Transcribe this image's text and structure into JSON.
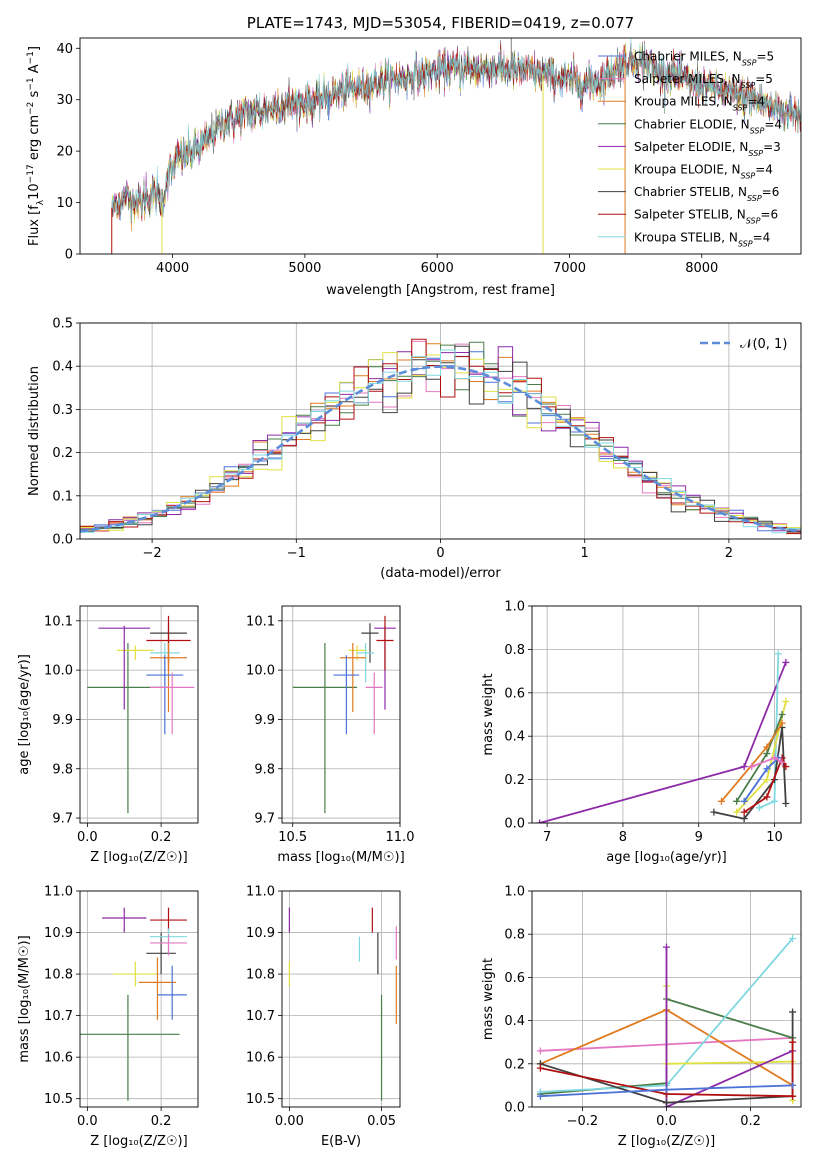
{
  "chart_data": [
    {
      "id": "spectrum",
      "type": "line",
      "title": "PLATE=1743, MJD=53054, FIBERID=0419, z=0.077",
      "xlabel": "wavelength [Angstrom, rest frame]",
      "ylabel": "Flux [f_λ10^-17 erg cm^-2 s^-1 A^-1]",
      "xlim": [
        3300,
        8750
      ],
      "ylim": [
        0,
        42
      ],
      "xticks": [
        4000,
        5000,
        6000,
        7000,
        8000
      ],
      "yticks": [
        0,
        10,
        20,
        30,
        40
      ],
      "grid": false,
      "legend_position": "top-right",
      "legend": [
        {
          "label": "Chabrier MILES, N",
          "sub": "SSP",
          "n": "=5",
          "color": "#4c72d8"
        },
        {
          "label": "Salpeter MILES, N",
          "sub": "SSP",
          "n": "=5",
          "color": "#e377c2"
        },
        {
          "label": "Kroupa MILES, N",
          "sub": "SSP",
          "n": "=4",
          "color": "#e07b20"
        },
        {
          "label": "Chabrier ELODIE, N",
          "sub": "SSP",
          "n": "=4",
          "color": "#4a7d4a"
        },
        {
          "label": "Salpeter ELODIE, N",
          "sub": "SSP",
          "n": "=3",
          "color": "#8e2aa8"
        },
        {
          "label": "Kroupa ELODIE, N",
          "sub": "SSP",
          "n": "=4",
          "color": "#e0e040"
        },
        {
          "label": "Chabrier STELIB, N",
          "sub": "SSP",
          "n": "=6",
          "color": "#404040"
        },
        {
          "label": "Salpeter STELIB, N",
          "sub": "SSP",
          "n": "=6",
          "color": "#b21010"
        },
        {
          "label": "Kroupa STELIB, N",
          "sub": "SSP",
          "n": "=4",
          "color": "#80d8e0"
        }
      ],
      "continuum": [
        [
          3540,
          9
        ],
        [
          3650,
          11
        ],
        [
          3750,
          10
        ],
        [
          3850,
          12
        ],
        [
          3920,
          10
        ],
        [
          3960,
          15
        ],
        [
          4050,
          19
        ],
        [
          4150,
          20
        ],
        [
          4250,
          22
        ],
        [
          4350,
          25
        ],
        [
          4450,
          26
        ],
        [
          4550,
          27
        ],
        [
          4700,
          28
        ],
        [
          4850,
          29
        ],
        [
          5000,
          29.5
        ],
        [
          5100,
          30
        ],
        [
          5200,
          31
        ],
        [
          5350,
          32
        ],
        [
          5500,
          33
        ],
        [
          5700,
          34
        ],
        [
          5900,
          35
        ],
        [
          6100,
          36
        ],
        [
          6300,
          36
        ],
        [
          6500,
          36
        ],
        [
          6700,
          35.5
        ],
        [
          6900,
          34.5
        ],
        [
          7100,
          33
        ],
        [
          7250,
          34
        ],
        [
          7400,
          37
        ],
        [
          7500,
          38
        ],
        [
          7600,
          37
        ],
        [
          7700,
          35
        ],
        [
          7800,
          35
        ],
        [
          7950,
          33
        ],
        [
          8100,
          32
        ],
        [
          8250,
          31
        ],
        [
          8400,
          30
        ],
        [
          8600,
          28
        ],
        [
          8750,
          27
        ]
      ],
      "sharp_features": [
        {
          "x": 3540,
          "y": 0,
          "color": "#b21010"
        },
        {
          "x": 3920,
          "y": 0,
          "color": "#e0e040"
        },
        {
          "x": 5180,
          "y": 26,
          "color": "#4c72d8"
        },
        {
          "x": 6560,
          "y": 42,
          "color": "#808080"
        },
        {
          "x": 6800,
          "y": 0,
          "color": "#e0e040"
        },
        {
          "x": 7420,
          "y": 0,
          "color": "#e07b20"
        }
      ]
    },
    {
      "id": "residual-histogram",
      "type": "histogram",
      "xlabel": "(data-model)/error",
      "ylabel": "Normed distribution",
      "xlim": [
        -2.5,
        2.5
      ],
      "ylim": [
        0,
        0.5
      ],
      "xticks": [
        -2,
        -1,
        0,
        1,
        2
      ],
      "yticks": [
        0.0,
        0.1,
        0.2,
        0.3,
        0.4,
        0.5
      ],
      "grid": true,
      "bin_width": 0.1,
      "legend_position": "top-right",
      "legend": [
        {
          "label": "𝒩(0, 1)",
          "color": "#5b8dd9",
          "style": "dashed"
        }
      ],
      "series_colors": [
        "#4c72d8",
        "#e377c2",
        "#e07b20",
        "#4a7d4a",
        "#8e2aa8",
        "#e0e040",
        "#404040",
        "#b21010",
        "#80d8e0"
      ]
    },
    {
      "id": "age-vs-z",
      "type": "errorbar",
      "xlabel": "Z [log₁₀(Z/Z☉)]",
      "ylabel": "age  [log₁₀(age/yr)]",
      "xlim": [
        -0.02,
        0.3
      ],
      "ylim": [
        9.69,
        10.13
      ],
      "xticks": [
        0.0,
        0.2
      ],
      "yticks": [
        9.7,
        9.8,
        9.9,
        10.0,
        10.1
      ],
      "grid": true,
      "points": [
        {
          "x": 0.11,
          "y": 9.965,
          "xerr": 0.11,
          "yup": 0.09,
          "ydn": 0.255,
          "color": "#4a7d4a"
        },
        {
          "x": 0.13,
          "y": 10.04,
          "xerr": 0.05,
          "yup": 0.01,
          "ydn": 0.02,
          "color": "#e0e040"
        },
        {
          "x": 0.1,
          "y": 10.085,
          "xerr": 0.07,
          "yup": 0.005,
          "ydn": 0.165,
          "color": "#8e2aa8"
        },
        {
          "x": 0.22,
          "y": 10.075,
          "xerr": 0.05,
          "yup": 0.02,
          "ydn": 0.06,
          "color": "#404040"
        },
        {
          "x": 0.22,
          "y": 10.06,
          "xerr": 0.06,
          "yup": 0.05,
          "ydn": 0.06,
          "color": "#b21010"
        },
        {
          "x": 0.21,
          "y": 10.035,
          "xerr": 0.04,
          "yup": 0.02,
          "ydn": 0.06,
          "color": "#80d8e0"
        },
        {
          "x": 0.22,
          "y": 10.025,
          "xerr": 0.05,
          "yup": 0.03,
          "ydn": 0.11,
          "color": "#e07b20"
        },
        {
          "x": 0.21,
          "y": 9.99,
          "xerr": 0.05,
          "yup": 0.04,
          "ydn": 0.12,
          "color": "#4c72d8"
        },
        {
          "x": 0.23,
          "y": 9.965,
          "xerr": 0.06,
          "yup": 0.03,
          "ydn": 0.095,
          "color": "#e377c2"
        }
      ]
    },
    {
      "id": "age-vs-mass",
      "type": "errorbar",
      "xlabel": "mass [log₁₀(M/M☉)]",
      "ylabel": "",
      "xlim": [
        10.45,
        11.0
      ],
      "ylim": [
        9.69,
        10.13
      ],
      "xticks": [
        10.5,
        11.0
      ],
      "yticks": [
        9.7,
        9.8,
        9.9,
        10.0,
        10.1
      ],
      "grid": true,
      "points": [
        {
          "x": 10.65,
          "y": 9.965,
          "xerr": 0.15,
          "yup": 0.09,
          "ydn": 0.255,
          "color": "#4a7d4a"
        },
        {
          "x": 10.8,
          "y": 10.04,
          "xerr": 0.04,
          "yup": 0.01,
          "ydn": 0.02,
          "color": "#e0e040"
        },
        {
          "x": 10.93,
          "y": 10.085,
          "xerr": 0.05,
          "yup": 0.005,
          "ydn": 0.165,
          "color": "#8e2aa8"
        },
        {
          "x": 10.86,
          "y": 10.075,
          "xerr": 0.04,
          "yup": 0.02,
          "ydn": 0.06,
          "color": "#404040"
        },
        {
          "x": 10.93,
          "y": 10.06,
          "xerr": 0.04,
          "yup": 0.05,
          "ydn": 0.06,
          "color": "#b21010"
        },
        {
          "x": 10.84,
          "y": 10.035,
          "xerr": 0.04,
          "yup": 0.02,
          "ydn": 0.06,
          "color": "#80d8e0"
        },
        {
          "x": 10.78,
          "y": 10.025,
          "xerr": 0.06,
          "yup": 0.03,
          "ydn": 0.11,
          "color": "#e07b20"
        },
        {
          "x": 10.75,
          "y": 9.99,
          "xerr": 0.06,
          "yup": 0.04,
          "ydn": 0.12,
          "color": "#4c72d8"
        },
        {
          "x": 10.88,
          "y": 9.965,
          "xerr": 0.04,
          "yup": 0.03,
          "ydn": 0.095,
          "color": "#e377c2"
        }
      ]
    },
    {
      "id": "weight-vs-age",
      "type": "line",
      "xlabel": "age  [log₁₀(age/yr)]",
      "ylabel": "mass weight",
      "xlim": [
        6.8,
        10.35
      ],
      "ylim": [
        0,
        1
      ],
      "xticks": [
        8,
        10
      ],
      "xtick_labels_extra": [
        7,
        9
      ],
      "yticks": [
        0.0,
        0.2,
        0.4,
        0.6,
        0.8,
        1.0
      ],
      "grid": true,
      "series": [
        {
          "color": "#8e2aa8",
          "points": [
            [
              6.9,
              0.0
            ],
            [
              9.6,
              0.26
            ],
            [
              10.15,
              0.74
            ]
          ]
        },
        {
          "color": "#80d8e0",
          "points": [
            [
              9.8,
              0.07
            ],
            [
              10.0,
              0.1
            ],
            [
              10.05,
              0.78
            ]
          ]
        },
        {
          "color": "#e0e040",
          "points": [
            [
              9.5,
              0.05
            ],
            [
              9.9,
              0.2
            ],
            [
              10.15,
              0.56
            ]
          ]
        },
        {
          "color": "#4a7d4a",
          "points": [
            [
              9.5,
              0.1
            ],
            [
              9.9,
              0.32
            ],
            [
              10.1,
              0.5
            ]
          ]
        },
        {
          "color": "#404040",
          "points": [
            [
              9.2,
              0.05
            ],
            [
              9.6,
              0.02
            ],
            [
              10.0,
              0.2
            ],
            [
              10.1,
              0.44
            ],
            [
              10.15,
              0.09
            ]
          ]
        },
        {
          "color": "#e07b20",
          "points": [
            [
              9.3,
              0.1
            ],
            [
              9.9,
              0.35
            ],
            [
              10.1,
              0.46
            ]
          ]
        },
        {
          "color": "#b21010",
          "points": [
            [
              9.6,
              0.05
            ],
            [
              9.9,
              0.12
            ],
            [
              10.1,
              0.3
            ],
            [
              10.15,
              0.26
            ]
          ]
        },
        {
          "color": "#4c72d8",
          "points": [
            [
              9.6,
              0.1
            ],
            [
              9.9,
              0.25
            ],
            [
              10.05,
              0.3
            ]
          ]
        },
        {
          "color": "#e377c2",
          "points": [
            [
              9.7,
              0.26
            ],
            [
              10.0,
              0.3
            ],
            [
              10.1,
              0.28
            ]
          ]
        }
      ]
    },
    {
      "id": "mass-vs-z",
      "type": "errorbar",
      "xlabel": "Z [log₁₀(Z/Z☉)]",
      "ylabel": "mass [log₁₀(M/M☉)]",
      "xlim": [
        -0.02,
        0.3
      ],
      "ylim": [
        10.48,
        11.0
      ],
      "xticks": [
        0.0,
        0.2
      ],
      "yticks": [
        10.5,
        10.6,
        10.7,
        10.8,
        10.9,
        11.0
      ],
      "grid": true,
      "points": [
        {
          "x": 0.11,
          "y": 10.655,
          "xerr": 0.14,
          "yup": 0.095,
          "ydn": 0.16,
          "color": "#4a7d4a"
        },
        {
          "x": 0.13,
          "y": 10.8,
          "xerr": 0.06,
          "yup": 0.03,
          "ydn": 0.03,
          "color": "#e0e040"
        },
        {
          "x": 0.1,
          "y": 10.935,
          "xerr": 0.06,
          "yup": 0.025,
          "ydn": 0.035,
          "color": "#8e2aa8"
        },
        {
          "x": 0.2,
          "y": 10.85,
          "xerr": 0.04,
          "yup": 0.05,
          "ydn": 0.05,
          "color": "#404040"
        },
        {
          "x": 0.22,
          "y": 10.93,
          "xerr": 0.05,
          "yup": 0.03,
          "ydn": 0.03,
          "color": "#b21010"
        },
        {
          "x": 0.22,
          "y": 10.89,
          "xerr": 0.05,
          "yup": 0.02,
          "ydn": 0.04,
          "color": "#80d8e0"
        },
        {
          "x": 0.22,
          "y": 10.875,
          "xerr": 0.05,
          "yup": 0.02,
          "ydn": 0.03,
          "color": "#e377c2"
        },
        {
          "x": 0.19,
          "y": 10.78,
          "xerr": 0.05,
          "yup": 0.06,
          "ydn": 0.09,
          "color": "#e07b20"
        },
        {
          "x": 0.23,
          "y": 10.75,
          "xerr": 0.04,
          "yup": 0.07,
          "ydn": 0.06,
          "color": "#4c72d8"
        }
      ]
    },
    {
      "id": "mass-vs-ebv",
      "type": "errorbar",
      "xlabel": "E(B-V)",
      "ylabel": "",
      "xlim": [
        -0.004,
        0.06
      ],
      "ylim": [
        10.48,
        11.0
      ],
      "xticks": [
        0.0,
        0.05
      ],
      "yticks": [
        10.5,
        10.6,
        10.7,
        10.8,
        10.9,
        11.0
      ],
      "grid": true,
      "points": [
        {
          "x": 0.05,
          "y": 10.655,
          "yup": 0.095,
          "ydn": 0.16,
          "color": "#4a7d4a"
        },
        {
          "x": 0.0,
          "y": 10.8,
          "yup": 0.03,
          "ydn": 0.03,
          "color": "#e0e040"
        },
        {
          "x": 0.0,
          "y": 10.935,
          "yup": 0.025,
          "ydn": 0.035,
          "color": "#8e2aa8"
        },
        {
          "x": 0.048,
          "y": 10.85,
          "yup": 0.05,
          "ydn": 0.05,
          "color": "#404040"
        },
        {
          "x": 0.045,
          "y": 10.93,
          "yup": 0.03,
          "ydn": 0.03,
          "color": "#b21010"
        },
        {
          "x": 0.038,
          "y": 10.87,
          "yup": 0.02,
          "ydn": 0.04,
          "color": "#80d8e0"
        },
        {
          "x": 0.058,
          "y": 10.875,
          "yup": 0.04,
          "ydn": 0.04,
          "color": "#e377c2"
        },
        {
          "x": 0.058,
          "y": 10.76,
          "yup": 0.06,
          "ydn": 0.08,
          "color": "#e07b20"
        }
      ]
    },
    {
      "id": "weight-vs-z",
      "type": "line",
      "xlabel": "Z [log₁₀(Z/Z☉)]",
      "ylabel": "mass weight",
      "xlim": [
        -0.32,
        0.32
      ],
      "ylim": [
        0,
        1
      ],
      "xticks": [
        -0.2,
        0.0,
        0.2
      ],
      "yticks": [
        0.0,
        0.2,
        0.4,
        0.6,
        0.8,
        1.0
      ],
      "grid": true,
      "series": [
        {
          "color": "#e377c2",
          "points": [
            [
              -0.3,
              0.26
            ],
            [
              0.0,
              0.29
            ],
            [
              0.3,
              0.32
            ]
          ]
        },
        {
          "color": "#e07b20",
          "points": [
            [
              -0.3,
              0.2
            ],
            [
              0.0,
              0.45
            ],
            [
              0.3,
              0.1
            ]
          ]
        },
        {
          "color": "#4a7d4a",
          "points": [
            [
              -0.3,
              0.06
            ],
            [
              0.0,
              0.11
            ],
            [
              0.0,
              0.5
            ],
            [
              0.3,
              0.32
            ]
          ]
        },
        {
          "color": "#80d8e0",
          "points": [
            [
              -0.3,
              0.07
            ],
            [
              0.0,
              0.1
            ],
            [
              0.3,
              0.78
            ]
          ]
        },
        {
          "color": "#e0e040",
          "points": [
            [
              0.0,
              0.56
            ],
            [
              0.0,
              0.2
            ],
            [
              0.3,
              0.21
            ],
            [
              0.3,
              0.03
            ]
          ]
        },
        {
          "color": "#8e2aa8",
          "points": [
            [
              0.0,
              0.74
            ],
            [
              0.0,
              0.0
            ],
            [
              0.3,
              0.26
            ]
          ]
        },
        {
          "color": "#404040",
          "points": [
            [
              -0.3,
              0.2
            ],
            [
              0.0,
              0.02
            ],
            [
              0.3,
              0.05
            ],
            [
              0.3,
              0.44
            ]
          ]
        },
        {
          "color": "#b21010",
          "points": [
            [
              -0.3,
              0.18
            ],
            [
              0.0,
              0.06
            ],
            [
              0.3,
              0.05
            ],
            [
              0.3,
              0.3
            ]
          ]
        },
        {
          "color": "#4c72d8",
          "points": [
            [
              -0.3,
              0.05
            ],
            [
              0.0,
              0.08
            ],
            [
              0.3,
              0.1
            ]
          ]
        }
      ]
    }
  ]
}
